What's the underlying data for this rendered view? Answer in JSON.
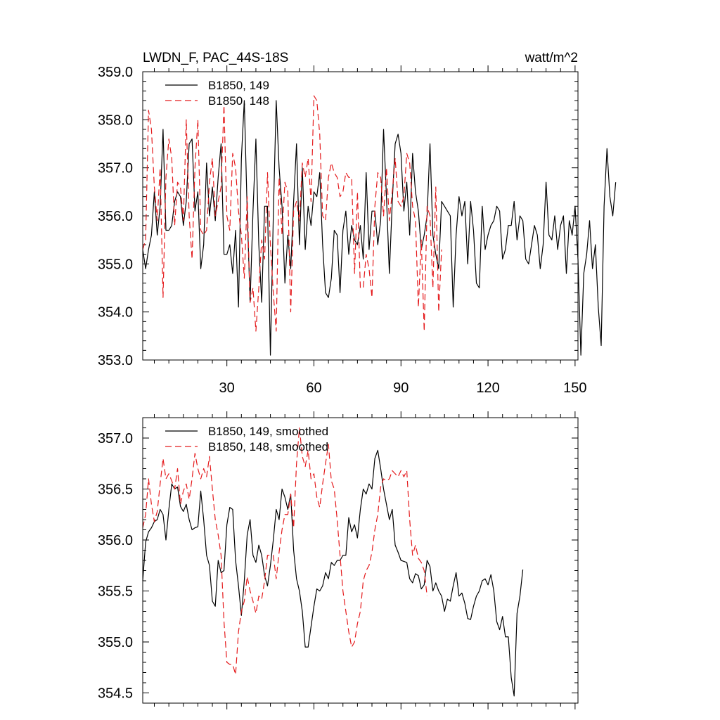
{
  "chart_data": [
    {
      "type": "line",
      "title": "LWDN_F, PAC_44S-18S",
      "units": "watt/m^2",
      "xlim": [
        1,
        151
      ],
      "ylim": [
        353.0,
        359.0
      ],
      "x_ticks": [
        "30",
        "60",
        "90",
        "120",
        "150"
      ],
      "y_ticks": [
        "359.0",
        "358.0",
        "357.0",
        "356.0",
        "355.0",
        "354.0",
        "353.0"
      ],
      "legend": [
        "B1850, 149",
        "B1850, 148"
      ],
      "legend_placement": "top-left",
      "grid": false,
      "series": [
        {
          "name": "B1850, 149",
          "color": "#000000",
          "style": "solid",
          "values": [
            355.3,
            354.9,
            355.3,
            355.6,
            356.5,
            355.6,
            356.2,
            357.8,
            355.7,
            355.7,
            355.8,
            356.3,
            356.5,
            356.4,
            355.8,
            356.3,
            357.5,
            357.6,
            356.1,
            356.5,
            354.9,
            355.4,
            357.1,
            356.0,
            356.6,
            355.9,
            356.8,
            357.5,
            355.2,
            355.2,
            355.4,
            354.8,
            355.7,
            354.1,
            357.2,
            358.4,
            356.1,
            354.2,
            356.1,
            357.6,
            355.4,
            354.2,
            356.2,
            356.2,
            353.1,
            356.0,
            358.4,
            357.0,
            356.2,
            354.6,
            355.6,
            354.9,
            356.3,
            357.5,
            355.4,
            357.0,
            355.3,
            356.2,
            355.8,
            356.5,
            356.4,
            356.9,
            355.4,
            354.4,
            354.3,
            354.7,
            355.7,
            355.6,
            354.4,
            355.7,
            356.1,
            355.2,
            355.8,
            355.5,
            355.4,
            355.8,
            355.1,
            356.9,
            355.3,
            356.1,
            356.1,
            355.4,
            355.9,
            357.8,
            356.4,
            354.8,
            356.3,
            357.5,
            357.7,
            357.3,
            356.1,
            356.7,
            355.6,
            357.3,
            356.5,
            356.1,
            355.3,
            355.6,
            356.0,
            357.5,
            355.6,
            355.2,
            354.9,
            356.3,
            356.2,
            356.1,
            356.0,
            354.1,
            355.6,
            356.4,
            356.0,
            356.3,
            355.0,
            356.3,
            355.7,
            354.6,
            354.5,
            356.2,
            355.3,
            355.6,
            355.8,
            355.9,
            356.2,
            356.1,
            355.1,
            355.3,
            355.8,
            355.8,
            356.3,
            355.5,
            356.0,
            355.9,
            355.1,
            355.0,
            355.4,
            355.8,
            355.6,
            354.9,
            355.4,
            356.7,
            355.6,
            355.5,
            356.0,
            355.3,
            355.8,
            356.0,
            354.8,
            355.9,
            355.6,
            356.2,
            355.1,
            353.1,
            354.8,
            355.2,
            355.9,
            354.9,
            355.4,
            354.1,
            353.3,
            356.2,
            357.4,
            356.4,
            356.0,
            356.7
          ]
        },
        {
          "name": "B1850, 148",
          "color": "#e41a1c",
          "style": "dashed",
          "values": [
            355.3,
            355.5,
            358.2,
            357.8,
            356.6,
            355.9,
            357.0,
            354.3,
            356.8,
            357.6,
            357.2,
            355.8,
            356.7,
            356.6,
            355.9,
            358.0,
            356.0,
            355.1,
            357.0,
            358.0,
            355.7,
            355.6,
            355.7,
            356.7,
            357.2,
            356.0,
            356.3,
            356.6,
            358.3,
            356.0,
            355.7,
            357.3,
            357.0,
            356.1,
            355.6,
            354.7,
            356.4,
            354.2,
            354.5,
            353.6,
            354.5,
            355.5,
            355.1,
            356.9,
            355.4,
            354.4,
            353.6,
            356.8,
            355.6,
            356.7,
            356.5,
            354.0,
            356.1,
            356.3,
            355.9,
            357.1,
            356.8,
            357.2,
            356.3,
            358.5,
            358.4,
            357.7,
            356.0,
            355.9,
            356.8,
            357.1,
            356.9,
            356.8,
            356.4,
            356.5,
            356.9,
            356.8,
            356.8,
            354.8,
            356.5,
            354.5,
            354.5,
            355.2,
            354.9,
            354.3,
            356.2,
            356.9,
            356.8,
            356.0,
            357.0,
            355.9,
            356.5,
            357.2,
            356.3,
            356.2,
            356.4,
            357.3,
            357.1,
            356.2,
            355.9,
            354.1,
            355.5,
            353.6,
            356.2,
            356.0,
            354.5,
            356.6,
            354.0,
            355.3
          ]
        }
      ]
    },
    {
      "type": "line",
      "title": "",
      "xlim": [
        1,
        151
      ],
      "ylim": [
        354.4,
        357.2
      ],
      "y_ticks": [
        "357.0",
        "356.5",
        "356.0",
        "355.5",
        "355.0",
        "354.5"
      ],
      "legend": [
        "B1850, 149, smoothed",
        "B1850, 148, smoothed"
      ],
      "legend_placement": "top-left",
      "grid": false,
      "series": [
        {
          "name": "B1850, 149, smoothed",
          "color": "#000000",
          "style": "solid",
          "values": [
            355.6,
            355.98,
            356.08,
            356.12,
            356.18,
            356.2,
            356.3,
            356.25,
            356.0,
            356.3,
            356.55,
            356.5,
            356.52,
            356.33,
            356.28,
            356.35,
            356.2,
            356.1,
            356.12,
            356.13,
            356.48,
            356.2,
            355.85,
            355.75,
            355.4,
            355.35,
            355.8,
            355.68,
            355.7,
            356.15,
            356.32,
            356.3,
            355.8,
            355.55,
            355.26,
            355.6,
            356.05,
            356.2,
            355.85,
            355.78,
            355.95,
            355.85,
            355.65,
            355.55,
            355.75,
            356.0,
            356.3,
            356.2,
            356.5,
            356.42,
            356.3,
            356.45,
            355.9,
            355.62,
            355.5,
            355.3,
            354.95,
            354.95,
            355.15,
            355.35,
            355.52,
            355.5,
            355.55,
            355.68,
            355.62,
            355.78,
            355.75,
            355.8,
            355.8,
            355.85,
            355.85,
            356.22,
            356.08,
            356.15,
            356.02,
            356.3,
            356.5,
            356.45,
            356.55,
            356.5,
            356.8,
            356.88,
            356.7,
            356.5,
            356.35,
            356.2,
            356.3,
            355.95,
            355.88,
            355.8,
            355.79,
            355.78,
            355.62,
            355.58,
            355.67,
            355.65,
            355.52,
            355.56,
            355.8,
            355.74,
            355.5,
            355.58,
            355.5,
            355.45,
            355.3,
            355.42,
            355.4,
            355.55,
            355.68,
            355.45,
            355.48,
            355.38,
            355.23,
            355.22,
            355.35,
            355.45,
            355.5,
            355.6,
            355.62,
            355.56,
            355.66,
            355.5,
            355.2,
            355.12,
            355.25,
            355.05,
            355.05,
            354.65,
            354.47,
            355.28,
            355.45,
            355.71
          ]
        },
        {
          "name": "B1850, 148, smoothed",
          "color": "#e41a1c",
          "style": "dashed",
          "values": [
            356.12,
            356.25,
            356.6,
            356.35,
            356.18,
            356.28,
            356.55,
            356.8,
            356.6,
            356.65,
            356.58,
            356.5,
            356.7,
            356.35,
            356.48,
            356.55,
            356.4,
            356.6,
            356.85,
            356.7,
            356.6,
            356.7,
            356.62,
            356.82,
            356.5,
            356.2,
            356.05,
            355.85,
            355.2,
            354.8,
            354.78,
            354.78,
            354.68,
            355.1,
            355.3,
            355.4,
            355.64,
            355.5,
            355.4,
            355.28,
            355.45,
            355.42,
            355.6,
            355.85,
            355.85,
            355.85,
            355.62,
            355.88,
            356.1,
            356.25,
            356.25,
            356.45,
            356.12,
            356.75,
            357.1,
            356.82,
            356.72,
            356.88,
            356.6,
            356.65,
            356.42,
            356.32,
            356.55,
            356.75,
            356.94,
            356.58,
            356.5,
            356.2,
            355.85,
            355.5,
            355.3,
            355.1,
            354.95,
            355.0,
            355.18,
            355.3,
            355.6,
            355.7,
            355.75,
            355.88,
            356.1,
            356.25,
            356.52,
            356.6,
            356.58,
            356.6,
            356.68,
            356.65,
            356.62,
            356.68,
            356.62,
            356.68,
            356.2,
            355.85,
            355.95,
            355.82,
            355.78,
            355.7,
            355.45
          ]
        }
      ]
    }
  ]
}
